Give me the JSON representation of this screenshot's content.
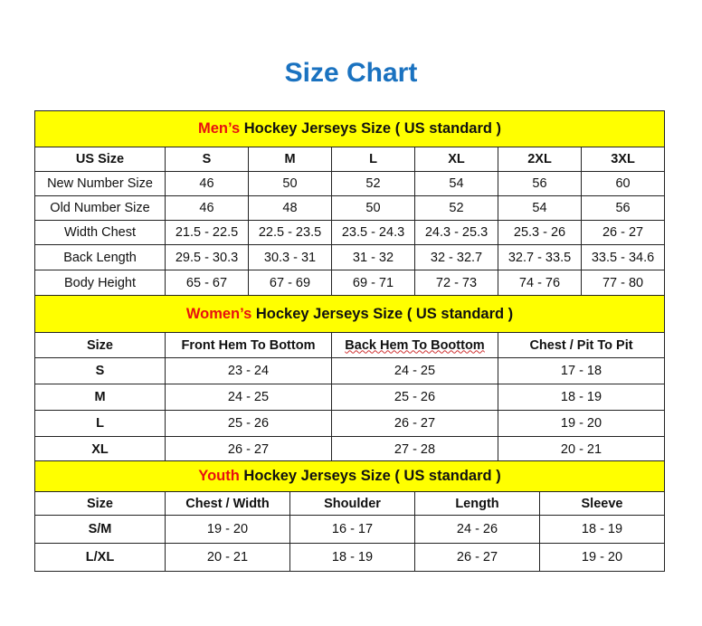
{
  "title": "Size Chart",
  "accent_colors": {
    "title": "#1a72c0",
    "header_bg": "#ffff00",
    "highlight": "#e81010"
  },
  "men": {
    "heading_highlight": "Men’s",
    "heading_rest": " Hockey Jerseys Size ( US standard )",
    "columns": [
      "US Size",
      "S",
      "M",
      "L",
      "XL",
      "2XL",
      "3XL"
    ],
    "rows": [
      [
        "New Number Size",
        "46",
        "50",
        "52",
        "54",
        "56",
        "60"
      ],
      [
        "Old Number Size",
        "46",
        "48",
        "50",
        "52",
        "54",
        "56"
      ],
      [
        "Width Chest",
        "21.5 - 22.5",
        "22.5 - 23.5",
        "23.5 - 24.3",
        "24.3 - 25.3",
        "25.3 - 26",
        "26 - 27"
      ],
      [
        "Back Length",
        "29.5 - 30.3",
        "30.3 - 31",
        "31 - 32",
        "32 - 32.7",
        "32.7 - 33.5",
        "33.5 - 34.6"
      ],
      [
        "Body Height",
        "65 - 67",
        "67 - 69",
        "69 - 71",
        "72 - 73",
        "74 - 76",
        "77 - 80"
      ]
    ]
  },
  "women": {
    "heading_highlight": "Women’s",
    "heading_rest": " Hockey Jerseys Size ( US standard )",
    "columns": [
      "Size",
      "Front Hem To Bottom",
      "Back Hem To Boottom",
      "Chest / Pit To Pit"
    ],
    "rows": [
      [
        "S",
        "23 - 24",
        "24 - 25",
        "17 - 18"
      ],
      [
        "M",
        "24 - 25",
        "25 - 26",
        "18 - 19"
      ],
      [
        "L",
        "25 - 26",
        "26 - 27",
        "19 - 20"
      ],
      [
        "XL",
        "26 - 27",
        "27 - 28",
        "20 - 21"
      ]
    ]
  },
  "youth": {
    "heading_highlight": "Youth",
    "heading_rest": " Hockey Jerseys Size ( US standard )",
    "columns": [
      "Size",
      "Chest / Width",
      "Shoulder",
      "Length",
      "Sleeve"
    ],
    "rows": [
      [
        "S/M",
        "19 - 20",
        "16 - 17",
        "24 - 26",
        "18 - 19"
      ],
      [
        "L/XL",
        "20 - 21",
        "18 - 19",
        "26 - 27",
        "19 - 20"
      ]
    ]
  }
}
